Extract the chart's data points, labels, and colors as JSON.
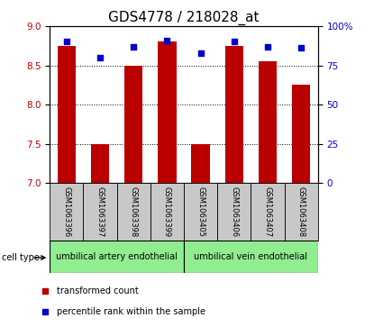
{
  "title": "GDS4778 / 218028_at",
  "samples": [
    "GSM1063396",
    "GSM1063397",
    "GSM1063398",
    "GSM1063399",
    "GSM1063405",
    "GSM1063406",
    "GSM1063407",
    "GSM1063408"
  ],
  "bar_values": [
    8.75,
    7.5,
    8.5,
    8.8,
    7.5,
    8.75,
    8.55,
    8.25
  ],
  "percentile_values": [
    90,
    80,
    87,
    91,
    83,
    90,
    87,
    86
  ],
  "ylim_left": [
    7,
    9
  ],
  "ylim_right": [
    0,
    100
  ],
  "yticks_left": [
    7,
    7.5,
    8,
    8.5,
    9
  ],
  "yticks_right": [
    0,
    25,
    50,
    75,
    100
  ],
  "ytick_labels_right": [
    "0",
    "25",
    "50",
    "75",
    "100%"
  ],
  "bar_color": "#bb0000",
  "percentile_color": "#0000cc",
  "bar_width": 0.55,
  "grid_color": "#000000",
  "cell_type_colors": [
    "#90ee90",
    "#90ee90"
  ],
  "cell_type_labels": [
    "umbilical artery endothelial",
    "umbilical vein endothelial"
  ],
  "cell_type_label": "cell type",
  "legend_items": [
    {
      "color": "#bb0000",
      "label": "transformed count"
    },
    {
      "color": "#0000cc",
      "label": "percentile rank within the sample"
    }
  ],
  "title_fontsize": 11,
  "tick_fontsize": 7.5,
  "sample_fontsize": 6,
  "cell_type_fontsize": 7,
  "legend_fontsize": 7,
  "bg_gray": "#c8c8c8"
}
